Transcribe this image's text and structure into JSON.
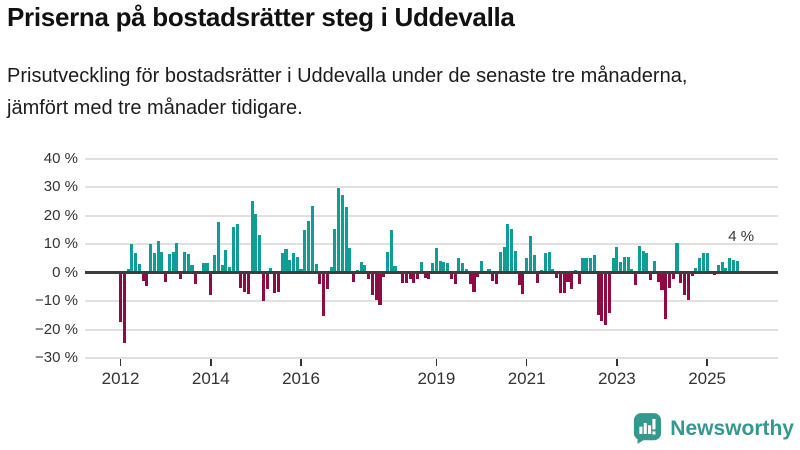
{
  "header": {
    "title": "Priserna på bostadsrätter steg i Uddevalla",
    "subtitle": "Prisutveckling för bostadsrätter i Uddevalla under de senaste tre månaderna, jämfört med tre månader tidigare."
  },
  "chart_data": {
    "type": "bar",
    "unit": "%",
    "frequency": "monthly",
    "start_year": 2012,
    "start_month": "2012-01",
    "values": [
      -17,
      -24.5,
      1.3,
      10,
      7,
      3,
      -2.6,
      -4.4,
      10,
      7,
      11,
      7.4,
      -3,
      6.5,
      7.2,
      10.6,
      -2,
      7.4,
      6.6,
      2.7,
      -3.8,
      0.3,
      3.3,
      3.5,
      -7.5,
      6.2,
      17.8,
      2.7,
      8,
      2,
      16,
      17,
      -5,
      -6.4,
      -7,
      25.3,
      20.7,
      13.3,
      -9.6,
      -5.3,
      1.8,
      -6.7,
      -6.4,
      7,
      8.2,
      4.5,
      6.8,
      5.4,
      1.3,
      15,
      18.2,
      23.5,
      3,
      -3.8,
      -15,
      -5.5,
      2,
      15.5,
      29.6,
      27.2,
      23.2,
      8.6,
      -3,
      1,
      3.6,
      2.7,
      -1.8,
      -7.6,
      -9.3,
      -11,
      -1.2,
      7.4,
      15,
      2.2,
      0,
      -3.4,
      -3.2,
      -2,
      -3.4,
      -1.8,
      3.9,
      -1.4,
      -2,
      3.3,
      8.6,
      4.2,
      3.9,
      3.3,
      -2,
      -3.8,
      5.1,
      3.5,
      1.2,
      -3.5,
      -6.4,
      -1.2,
      4.2,
      0,
      1.2,
      -2.4,
      -3.5,
      7.4,
      9.2,
      17.2,
      15.3,
      7.5,
      -4.1,
      -7,
      5.3,
      13,
      6.2,
      -3.4,
      0.9,
      6.8,
      7.2,
      1.3,
      -1.6,
      -6.7,
      -6.7,
      -3,
      -5.3,
      1,
      -3.8,
      5,
      5.3,
      5.3,
      6.2,
      -14.4,
      -16.7,
      -17.9,
      -13.8,
      5,
      9.2,
      3.9,
      5.6,
      5.4,
      1.2,
      -4.1,
      9.4,
      7.8,
      7,
      -2.2,
      4.2,
      -2.9,
      -5.8,
      -16.1,
      -4.9,
      -1.8,
      10.4,
      -3.2,
      -7.6,
      -9.4,
      -0.8,
      1.5,
      5,
      6.8,
      7,
      0,
      -0.5,
      2.7,
      3.6,
      1.7,
      5.3,
      4.5,
      4
    ],
    "y_axis": {
      "ticks": [
        {
          "value": 40,
          "label": "40 %"
        },
        {
          "value": 30,
          "label": "30 %"
        },
        {
          "value": 20,
          "label": "20 %"
        },
        {
          "value": 10,
          "label": "10 %"
        },
        {
          "value": 0,
          "label": "0 %"
        },
        {
          "value": -10,
          "label": "−10 %"
        },
        {
          "value": -20,
          "label": "−20 %"
        },
        {
          "value": -30,
          "label": "−30 %"
        }
      ]
    },
    "x_axis": {
      "tick_years": [
        "2012",
        "2014",
        "2016",
        "2019",
        "2021",
        "2023",
        "2025"
      ]
    },
    "ylim": [
      -33,
      45
    ],
    "annotation": {
      "text": "4 %"
    },
    "colors": {
      "positive": "#0f9e96",
      "negative": "#8e0c44",
      "axis": "#3d3d3d",
      "grid": "#e0e0e0"
    }
  },
  "footer": {
    "brand": "Newsworthy",
    "brand_color": "#35988f"
  }
}
